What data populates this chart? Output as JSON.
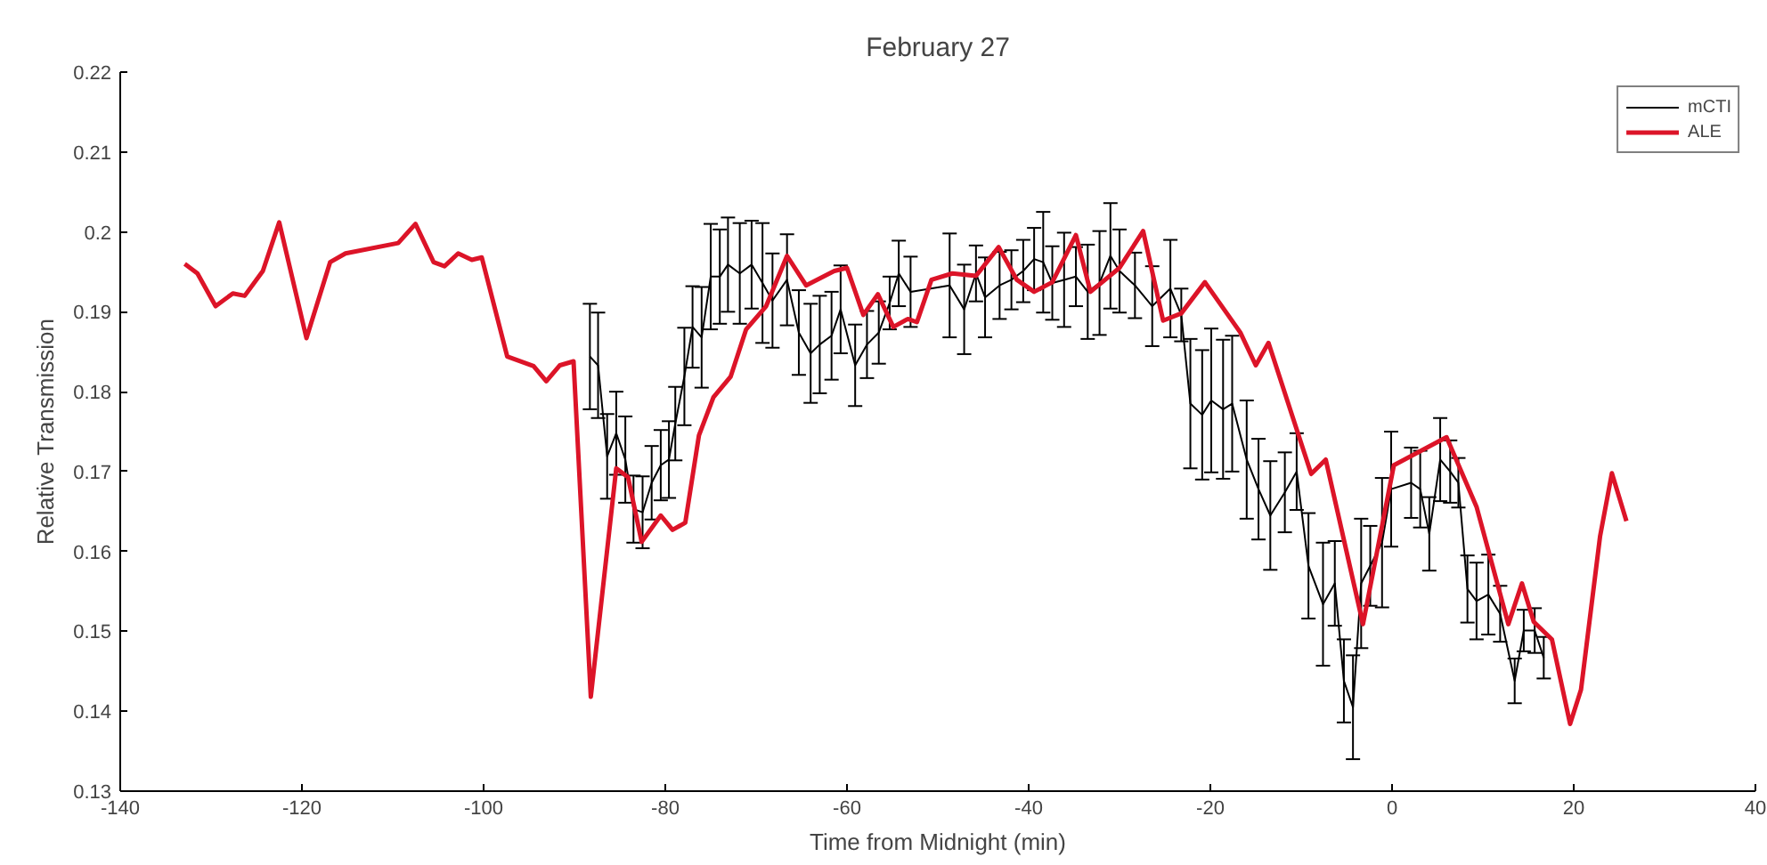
{
  "chart_data": {
    "type": "line",
    "title": "February 27",
    "xlabel": "Time from Midnight (min)",
    "ylabel": "Relative Transmission",
    "xlim": [
      -140,
      40
    ],
    "xticks": [
      -140,
      -120,
      -100,
      -80,
      -60,
      -40,
      -20,
      0,
      20,
      40
    ],
    "ylim": [
      0.13,
      0.22
    ],
    "yticks": [
      0.13,
      0.14,
      0.15,
      0.16,
      0.17,
      0.18,
      0.19,
      0.2,
      0.21,
      0.22
    ],
    "grid": false,
    "legend": "top right",
    "series": [
      {
        "name": "mCTI",
        "color": "#000000",
        "x": [
          -88.3,
          -87.4,
          -86.4,
          -85.4,
          -84.4,
          -83.5,
          -82.5,
          -81.5,
          -80.5,
          -79.6,
          -78.9,
          -77.9,
          -77.0,
          -76.0,
          -75.0,
          -74.0,
          -73.1,
          -71.8,
          -70.5,
          -69.3,
          -68.2,
          -66.6,
          -65.3,
          -64.0,
          -63.0,
          -61.7,
          -60.7,
          -59.1,
          -57.8,
          -56.5,
          -55.3,
          -54.3,
          -53.0,
          -48.7,
          -47.1,
          -45.8,
          -44.8,
          -43.2,
          -41.9,
          -40.6,
          -39.4,
          -38.4,
          -37.4,
          -36.1,
          -34.8,
          -33.5,
          -32.2,
          -31.0,
          -30.0,
          -28.3,
          -26.4,
          -24.4,
          -23.2,
          -22.2,
          -20.9,
          -19.9,
          -18.6,
          -17.6,
          -16.0,
          -14.7,
          -13.4,
          -11.8,
          -10.5,
          -9.2,
          -7.6,
          -6.3,
          -5.3,
          -4.3,
          -3.4,
          -2.4,
          -1.1,
          -0.1,
          2.1,
          3.1,
          4.1,
          5.3,
          6.4,
          7.3,
          8.3,
          9.3,
          10.6,
          11.9,
          13.5,
          14.5,
          15.7,
          16.7
        ],
        "values": [
          0.1844,
          0.1833,
          0.1719,
          0.1748,
          0.1715,
          0.1653,
          0.1649,
          0.1686,
          0.1708,
          0.1715,
          0.176,
          0.1819,
          0.1881,
          0.1868,
          0.1944,
          0.1944,
          0.1959,
          0.1948,
          0.1959,
          0.1936,
          0.1914,
          0.194,
          0.1874,
          0.1848,
          0.1859,
          0.187,
          0.1903,
          0.1833,
          0.1859,
          0.1874,
          0.1911,
          0.1948,
          0.1925,
          0.1933,
          0.1903,
          0.1948,
          0.1918,
          0.1933,
          0.194,
          0.1951,
          0.1966,
          0.1962,
          0.1936,
          0.194,
          0.1944,
          0.1925,
          0.1936,
          0.197,
          0.1951,
          0.1933,
          0.1907,
          0.1929,
          0.1896,
          0.1785,
          0.1771,
          0.1789,
          0.1778,
          0.1785,
          0.1715,
          0.1678,
          0.1645,
          0.1674,
          0.17,
          0.1582,
          0.1534,
          0.156,
          0.1438,
          0.1405,
          0.156,
          0.1582,
          0.1611,
          0.1678,
          0.1686,
          0.1678,
          0.1622,
          0.1715,
          0.17,
          0.1686,
          0.1553,
          0.1538,
          0.1546,
          0.1522,
          0.1438,
          0.1501,
          0.1501,
          0.1467
        ],
        "errors": [
          0.0066,
          0.0066,
          0.0053,
          0.0052,
          0.0054,
          0.0042,
          0.0045,
          0.0046,
          0.0044,
          0.0048,
          0.0046,
          0.0061,
          0.0051,
          0.0063,
          0.0066,
          0.0059,
          0.0059,
          0.0063,
          0.0055,
          0.0075,
          0.0059,
          0.0057,
          0.0053,
          0.0062,
          0.0061,
          0.0055,
          0.0055,
          0.0051,
          0.0042,
          0.0039,
          0.0033,
          0.0041,
          0.0044,
          0.0065,
          0.0056,
          0.0035,
          0.005,
          0.0042,
          0.0037,
          0.0039,
          0.0039,
          0.0063,
          0.0046,
          0.0059,
          0.0037,
          0.0059,
          0.0065,
          0.0066,
          0.0052,
          0.0041,
          0.005,
          0.0061,
          0.0033,
          0.0081,
          0.0081,
          0.009,
          0.0087,
          0.0085,
          0.0074,
          0.0063,
          0.0068,
          0.005,
          0.0048,
          0.0066,
          0.0077,
          0.0053,
          0.0052,
          0.0065,
          0.0081,
          0.005,
          0.0081,
          0.0072,
          0.0044,
          0.0048,
          0.0046,
          0.0052,
          0.0039,
          0.0031,
          0.0042,
          0.0048,
          0.005,
          0.0035,
          0.0028,
          0.0026,
          0.0028,
          0.0026
        ]
      },
      {
        "name": "ALE",
        "color": "#dc1428",
        "x": [
          -132.9,
          -131.5,
          -129.5,
          -127.6,
          -126.3,
          -124.3,
          -122.5,
          -119.5,
          -116.9,
          -115.2,
          -109.4,
          -107.5,
          -105.5,
          -104.3,
          -102.8,
          -101.3,
          -100.2,
          -97.4,
          -94.5,
          -93.1,
          -91.6,
          -90.1,
          -88.2,
          -85.4,
          -84.1,
          -82.6,
          -80.5,
          -79.2,
          -77.8,
          -76.3,
          -74.7,
          -72.8,
          -71.1,
          -68.9,
          -66.6,
          -64.5,
          -61.4,
          -60.0,
          -58.2,
          -56.6,
          -54.9,
          -53.3,
          -52.3,
          -50.7,
          -48.4,
          -45.8,
          -43.3,
          -41.3,
          -39.4,
          -37.4,
          -34.8,
          -33.2,
          -30.0,
          -27.4,
          -25.2,
          -23.2,
          -20.6,
          -16.7,
          -15.0,
          -13.6,
          -8.9,
          -7.3,
          -3.2,
          0.2,
          6.0,
          9.3,
          12.8,
          14.3,
          15.6,
          17.6,
          19.6,
          20.8,
          22.9,
          24.2,
          25.8
        ],
        "values": [
          0.196,
          0.1948,
          0.1907,
          0.1923,
          0.192,
          0.1951,
          0.2012,
          0.1867,
          0.1962,
          0.1973,
          0.1986,
          0.201,
          0.1962,
          0.1957,
          0.1973,
          0.1965,
          0.1968,
          0.1844,
          0.1832,
          0.1813,
          0.1833,
          0.1838,
          0.1418,
          0.1704,
          0.1693,
          0.1612,
          0.1645,
          0.1627,
          0.1636,
          0.1745,
          0.1793,
          0.1819,
          0.1878,
          0.1907,
          0.197,
          0.1933,
          0.1951,
          0.1955,
          0.1896,
          0.1922,
          0.1881,
          0.1891,
          0.1887,
          0.194,
          0.1948,
          0.1945,
          0.1981,
          0.194,
          0.1925,
          0.1937,
          0.1996,
          0.1925,
          0.1955,
          0.2001,
          0.1889,
          0.1898,
          0.1937,
          0.1874,
          0.1833,
          0.1861,
          0.1697,
          0.1715,
          0.1509,
          0.1708,
          0.1743,
          0.1656,
          0.1509,
          0.156,
          0.1512,
          0.149,
          0.1384,
          0.1427,
          0.1619,
          0.1698,
          0.1638
        ]
      }
    ]
  }
}
